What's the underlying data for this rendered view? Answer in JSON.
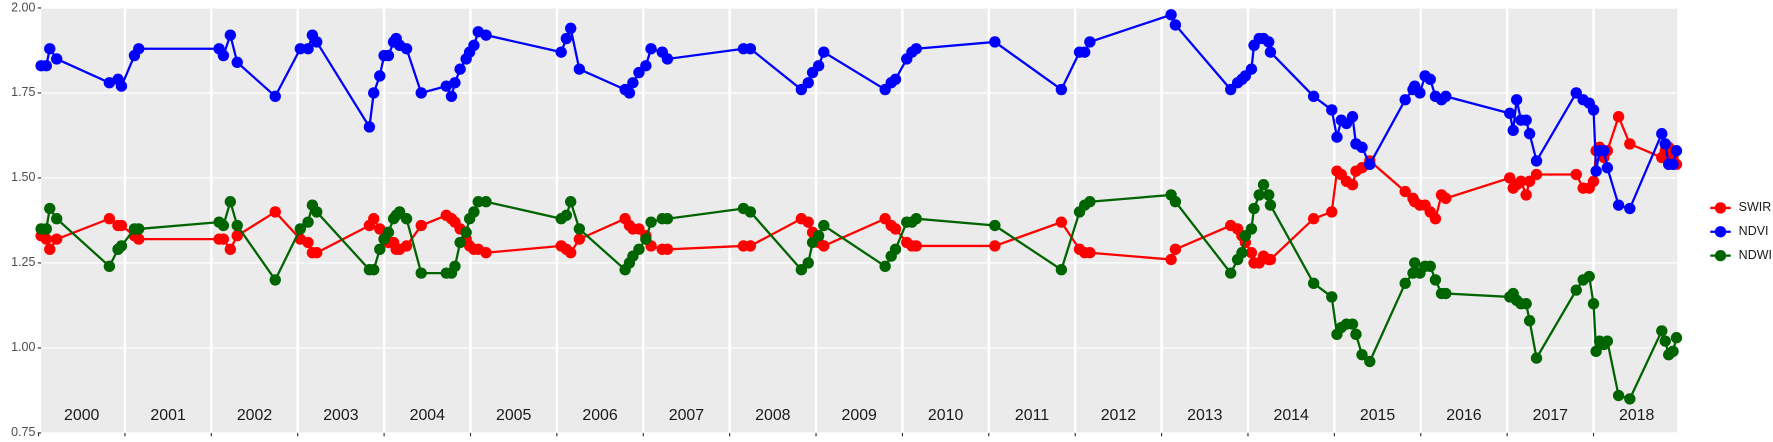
{
  "chart_data": {
    "type": "line",
    "x": [
      2000.03,
      2000.09,
      2000.13,
      2000.21,
      2000.82,
      2000.92,
      2000.96,
      2001.11,
      2001.16,
      2002.09,
      2002.14,
      2002.22,
      2002.3,
      2002.74,
      2003.03,
      2003.12,
      2003.17,
      2003.22,
      2003.83,
      2003.88,
      2003.95,
      2004.0,
      2004.05,
      2004.11,
      2004.14,
      2004.18,
      2004.26,
      2004.43,
      2004.72,
      2004.78,
      2004.82,
      2004.88,
      2004.95,
      2004.99,
      2005.04,
      2005.09,
      2005.18,
      2006.05,
      2006.11,
      2006.16,
      2006.26,
      2006.79,
      2006.84,
      2006.88,
      2006.95,
      2007.03,
      2007.09,
      2007.22,
      2007.28,
      2008.16,
      2008.24,
      2008.83,
      2008.91,
      2008.96,
      2009.03,
      2009.09,
      2009.8,
      2009.87,
      2009.92,
      2010.05,
      2010.11,
      2010.16,
      2011.07,
      2011.84,
      2012.05,
      2012.11,
      2012.17,
      2013.11,
      2013.16,
      2013.8,
      2013.88,
      2013.93,
      2013.97,
      2014.04,
      2014.07,
      2014.13,
      2014.18,
      2014.24,
      2014.26,
      2014.76,
      2014.97,
      2015.03,
      2015.08,
      2015.14,
      2015.21,
      2015.25,
      2015.32,
      2015.41,
      2015.82,
      2015.91,
      2015.93,
      2015.99,
      2016.05,
      2016.11,
      2016.17,
      2016.24,
      2016.29,
      2017.03,
      2017.07,
      2017.11,
      2017.16,
      2017.22,
      2017.26,
      2017.34,
      2017.8,
      2017.88,
      2017.95,
      2018.0,
      2018.03,
      2018.07,
      2018.12,
      2018.16,
      2018.29,
      2018.42,
      2018.79,
      2018.83,
      2018.87,
      2018.92,
      2018.96
    ],
    "series": [
      {
        "name": "SWIR",
        "color": "#ff0000",
        "values": [
          1.33,
          1.32,
          1.29,
          1.32,
          1.38,
          1.36,
          1.36,
          1.33,
          1.32,
          1.32,
          1.32,
          1.29,
          1.33,
          1.4,
          1.32,
          1.31,
          1.28,
          1.28,
          1.36,
          1.38,
          1.35,
          1.32,
          1.31,
          1.31,
          1.29,
          1.29,
          1.3,
          1.36,
          1.39,
          1.38,
          1.37,
          1.35,
          1.32,
          1.3,
          1.29,
          1.29,
          1.28,
          1.3,
          1.29,
          1.28,
          1.32,
          1.38,
          1.36,
          1.35,
          1.35,
          1.33,
          1.3,
          1.29,
          1.29,
          1.3,
          1.3,
          1.38,
          1.37,
          1.34,
          1.31,
          1.3,
          1.38,
          1.36,
          1.35,
          1.31,
          1.3,
          1.3,
          1.3,
          1.37,
          1.29,
          1.28,
          1.28,
          1.26,
          1.29,
          1.36,
          1.35,
          1.33,
          1.31,
          1.28,
          1.25,
          1.25,
          1.27,
          1.26,
          1.26,
          1.38,
          1.4,
          1.52,
          1.51,
          1.49,
          1.48,
          1.52,
          1.53,
          1.55,
          1.46,
          1.44,
          1.43,
          1.42,
          1.42,
          1.4,
          1.38,
          1.45,
          1.44,
          1.5,
          1.47,
          1.48,
          1.49,
          1.45,
          1.49,
          1.51,
          1.51,
          1.47,
          1.47,
          1.49,
          1.58,
          1.59,
          1.56,
          1.58,
          1.68,
          1.6,
          1.56,
          1.58,
          1.59,
          1.56,
          1.54
        ]
      },
      {
        "name": "NDVI",
        "color": "#0000ff",
        "values": [
          1.83,
          1.83,
          1.88,
          1.85,
          1.78,
          1.79,
          1.77,
          1.86,
          1.88,
          1.88,
          1.86,
          1.92,
          1.84,
          1.74,
          1.88,
          1.88,
          1.92,
          1.9,
          1.65,
          1.75,
          1.8,
          1.86,
          1.86,
          1.9,
          1.91,
          1.89,
          1.88,
          1.75,
          1.77,
          1.74,
          1.78,
          1.82,
          1.85,
          1.87,
          1.89,
          1.93,
          1.92,
          1.87,
          1.91,
          1.94,
          1.82,
          1.76,
          1.75,
          1.78,
          1.81,
          1.83,
          1.88,
          1.87,
          1.85,
          1.88,
          1.88,
          1.76,
          1.78,
          1.81,
          1.83,
          1.87,
          1.76,
          1.78,
          1.79,
          1.85,
          1.87,
          1.88,
          1.9,
          1.76,
          1.87,
          1.87,
          1.9,
          1.98,
          1.95,
          1.76,
          1.78,
          1.79,
          1.8,
          1.82,
          1.89,
          1.91,
          1.91,
          1.9,
          1.87,
          1.74,
          1.7,
          1.62,
          1.67,
          1.66,
          1.68,
          1.6,
          1.59,
          1.54,
          1.73,
          1.76,
          1.77,
          1.75,
          1.8,
          1.79,
          1.74,
          1.73,
          1.74,
          1.69,
          1.64,
          1.73,
          1.67,
          1.67,
          1.63,
          1.55,
          1.75,
          1.73,
          1.72,
          1.7,
          1.52,
          1.58,
          1.58,
          1.53,
          1.42,
          1.41,
          1.63,
          1.6,
          1.54,
          1.54,
          1.58
        ]
      },
      {
        "name": "NDWI",
        "color": "#006400",
        "values": [
          1.35,
          1.35,
          1.41,
          1.38,
          1.24,
          1.29,
          1.3,
          1.35,
          1.35,
          1.37,
          1.36,
          1.43,
          1.36,
          1.2,
          1.35,
          1.37,
          1.42,
          1.4,
          1.23,
          1.23,
          1.29,
          1.32,
          1.34,
          1.38,
          1.39,
          1.4,
          1.38,
          1.22,
          1.22,
          1.22,
          1.24,
          1.31,
          1.34,
          1.38,
          1.4,
          1.43,
          1.43,
          1.38,
          1.39,
          1.43,
          1.35,
          1.23,
          1.25,
          1.27,
          1.29,
          1.32,
          1.37,
          1.38,
          1.38,
          1.41,
          1.4,
          1.23,
          1.25,
          1.31,
          1.33,
          1.36,
          1.24,
          1.27,
          1.29,
          1.37,
          1.37,
          1.38,
          1.36,
          1.23,
          1.4,
          1.42,
          1.43,
          1.45,
          1.43,
          1.22,
          1.26,
          1.28,
          1.33,
          1.35,
          1.41,
          1.45,
          1.48,
          1.45,
          1.42,
          1.19,
          1.15,
          1.04,
          1.06,
          1.07,
          1.07,
          1.04,
          0.98,
          0.96,
          1.19,
          1.22,
          1.25,
          1.22,
          1.24,
          1.24,
          1.2,
          1.16,
          1.16,
          1.15,
          1.16,
          1.14,
          1.13,
          1.13,
          1.08,
          0.97,
          1.17,
          1.2,
          1.21,
          1.13,
          0.99,
          1.02,
          1.01,
          1.02,
          0.86,
          0.85,
          1.05,
          1.02,
          0.98,
          0.99,
          1.03
        ]
      }
    ],
    "xlim": [
      2000.03,
      2018.97
    ],
    "xticks": [
      2000,
      2001,
      2002,
      2003,
      2004,
      2005,
      2006,
      2007,
      2008,
      2009,
      2010,
      2011,
      2012,
      2013,
      2014,
      2015,
      2016,
      2017,
      2018
    ],
    "ylim": [
      0.75,
      2.0
    ],
    "yticks": [
      0.75,
      {
        "value": 1.0,
        "label": "1.00"
      },
      1.25,
      {
        "value": 1.5,
        "label": "1.50"
      },
      1.75,
      {
        "value": 2.0,
        "label": "2.00"
      }
    ],
    "grid": true,
    "legend": "right"
  }
}
